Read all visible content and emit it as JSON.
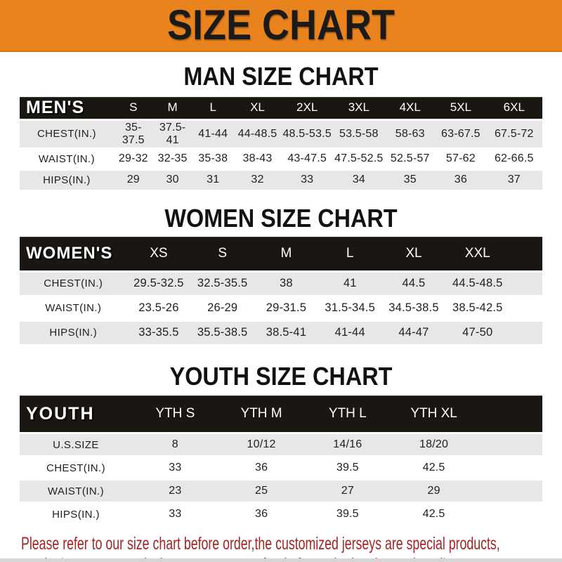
{
  "banner": {
    "title": "SIZE CHART"
  },
  "sections": [
    {
      "id": "men",
      "heading": "MAN SIZE CHART",
      "table": {
        "corner": "MEN'S",
        "columns": [
          "S",
          "M",
          "L",
          "XL",
          "2XL",
          "3XL",
          "4XL",
          "5XL",
          "6XL"
        ],
        "rows": [
          {
            "label": "CHEST(IN.)",
            "values": [
              "35-37.5",
              "37.5-41",
              "41-44",
              "44-48.5",
              "48.5-53.5",
              "53.5-58",
              "58-63",
              "63-67.5",
              "67.5-72"
            ]
          },
          {
            "label": "WAIST(IN.)",
            "values": [
              "29-32",
              "32-35",
              "35-38",
              "38-43",
              "43-47.5",
              "47.5-52.5",
              "52.5-57",
              "57-62",
              "62-66.5"
            ]
          },
          {
            "label": "HIPS(IN.)",
            "values": [
              "29",
              "30",
              "31",
              "32",
              "33",
              "34",
              "35",
              "36",
              "37"
            ]
          }
        ]
      }
    },
    {
      "id": "women",
      "heading": "WOMEN SIZE CHART",
      "table": {
        "corner": "WOMEN'S",
        "columns": [
          "XS",
          "S",
          "M",
          "L",
          "XL",
          "XXL"
        ],
        "rows": [
          {
            "label": "CHEST(IN.)",
            "values": [
              "29.5-32.5",
              "32.5-35.5",
              "38",
              "41",
              "44.5",
              "44.5-48.5"
            ]
          },
          {
            "label": "WAIST(IN.)",
            "values": [
              "23.5-26",
              "26-29",
              "29-31.5",
              "31.5-34.5",
              "34.5-38.5",
              "38.5-42.5"
            ]
          },
          {
            "label": "HIPS(IN.)",
            "values": [
              "33-35.5",
              "35.5-38.5",
              "38.5-41",
              "41-44",
              "44-47",
              "47-50"
            ]
          }
        ]
      }
    },
    {
      "id": "youth",
      "heading": "YOUTH SIZE CHART",
      "table": {
        "corner": "YOUTH",
        "columns": [
          "YTH S",
          "YTH M",
          "YTH L",
          "YTH XL"
        ],
        "rows": [
          {
            "label": "U.S.SIZE",
            "values": [
              "8",
              "10/12",
              "14/16",
              "18/20"
            ]
          },
          {
            "label": "CHEST(IN.)",
            "values": [
              "33",
              "36",
              "39.5",
              "42.5"
            ]
          },
          {
            "label": "WAIST(IN.)",
            "values": [
              "23",
              "25",
              "27",
              "29"
            ]
          },
          {
            "label": "HIPS(IN.)",
            "values": [
              "33",
              "36",
              "39.5",
              "42.5"
            ]
          }
        ]
      }
    }
  ],
  "footer": {
    "line1": "Please refer to our size chart before order,the customized jerseys are special products,",
    "line2": "we don't accept cancel, change, teturn or refund after order has been placed!"
  },
  "colors": {
    "banner_bg": "#E8831E",
    "banner_text": "#1A1A1A",
    "header_bar": "#1A1713",
    "row_alt": "#E7E7E7",
    "body_text": "#1F1F1F",
    "disclaimer": "#A42522",
    "bottom_strip": "#D6D6D6"
  }
}
